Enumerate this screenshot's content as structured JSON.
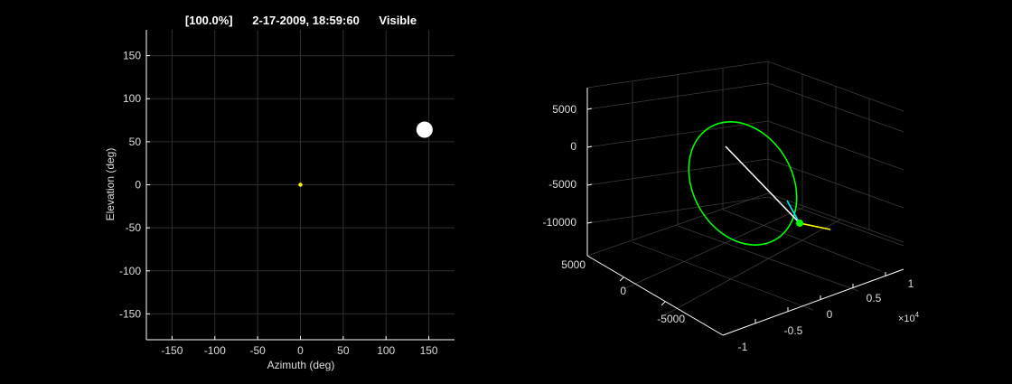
{
  "title": {
    "percent": "[100.0%]",
    "datetime": "2-17-2009, 18:59:60",
    "status": "Visible"
  },
  "chart_data": [
    {
      "type": "scatter",
      "xlabel": "Azimuth (deg)",
      "ylabel": "Elevation (deg)",
      "xlim": [
        -180,
        180
      ],
      "ylim": [
        -180,
        180
      ],
      "xticks": [
        -150,
        -100,
        -50,
        0,
        50,
        100,
        150
      ],
      "yticks": [
        -150,
        -100,
        -50,
        0,
        50,
        100,
        150
      ],
      "grid": true,
      "points": [
        {
          "x": 0,
          "y": 0,
          "color": "#ffff00",
          "marker": "small-dot"
        },
        {
          "x": 145,
          "y": 64,
          "color": "#ffffff",
          "marker": "large-dot"
        }
      ]
    },
    {
      "type": "3d-line",
      "z_ticks": [
        "5000",
        "0",
        "-5000",
        "-10000"
      ],
      "y_ticks": [
        "5000",
        "0",
        "-5000"
      ],
      "x_ticks": [
        "-1",
        "-0.5",
        "0",
        "0.5",
        "1"
      ],
      "x_exponent": "×10",
      "x_exponent_power": "4",
      "grid": true,
      "orbit_color": "#00ff00",
      "vectors": [
        {
          "name": "",
          "color": "#ffffff"
        },
        {
          "name": "",
          "color": "#00e5ff"
        },
        {
          "name": "",
          "color": "#ffff00"
        }
      ]
    }
  ]
}
